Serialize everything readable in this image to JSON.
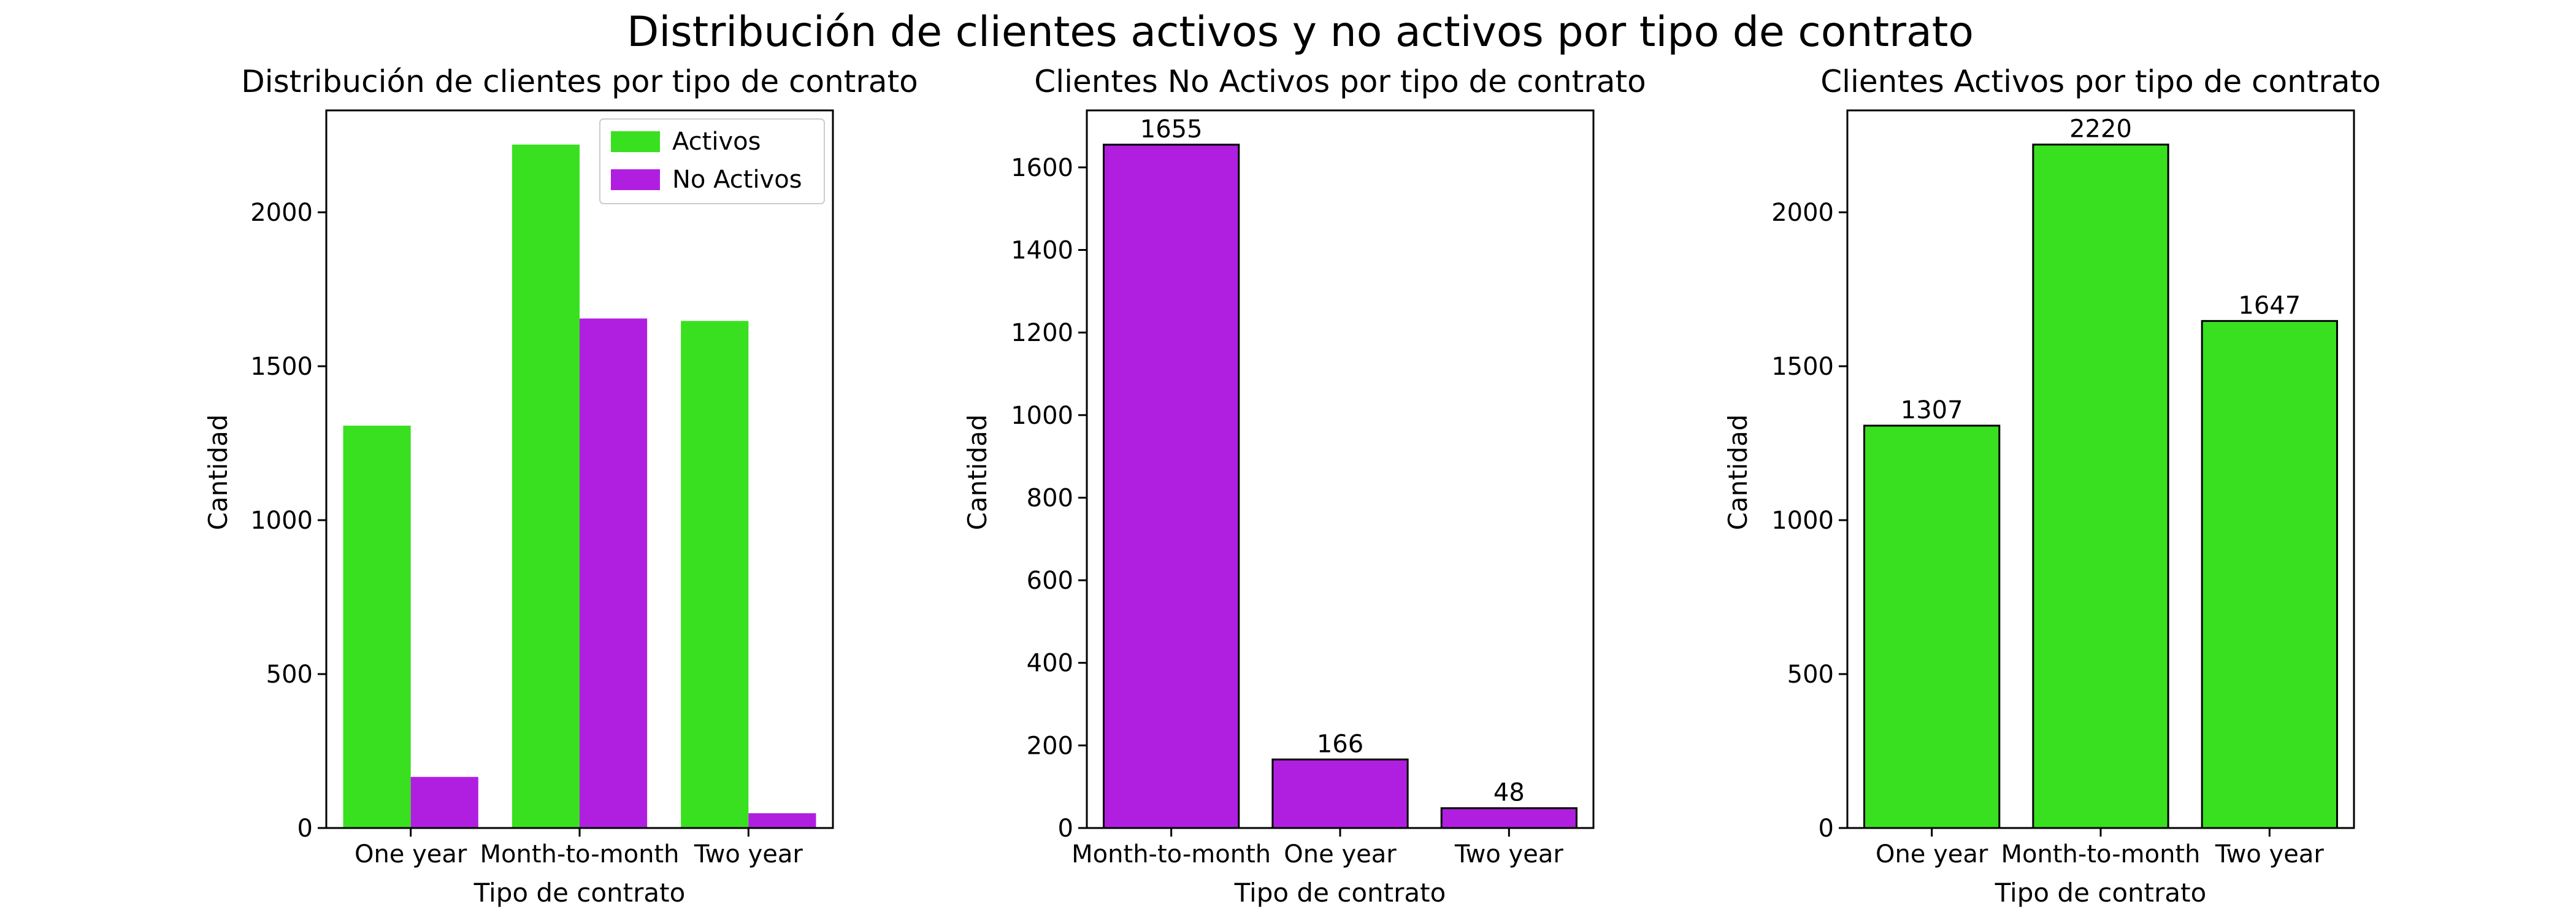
{
  "figure": {
    "suptitle": "Distribución de clientes activos y no activos por tipo de contrato"
  },
  "colors": {
    "activos": "#39e01f",
    "no_activos": "#b01fe0",
    "edge": "#000000"
  },
  "chart_data": [
    {
      "type": "bar",
      "title": "Distribución de clientes por tipo de contrato",
      "xlabel": "Tipo de contrato",
      "ylabel": "Cantidad",
      "categories": [
        "One year",
        "Month-to-month",
        "Two year"
      ],
      "series": [
        {
          "name": "Activos",
          "values": [
            1307,
            2220,
            1647
          ]
        },
        {
          "name": "No Activos",
          "values": [
            166,
            1655,
            48
          ]
        }
      ],
      "ylim": [
        0,
        2331
      ],
      "yticks": [
        0,
        500,
        1000,
        1500,
        2000
      ],
      "legend": "upper right",
      "grid": false
    },
    {
      "type": "bar",
      "title": "Clientes No Activos por tipo de contrato",
      "xlabel": "Tipo de contrato",
      "ylabel": "Cantidad",
      "categories": [
        "Month-to-month",
        "One year",
        "Two year"
      ],
      "values": [
        1655,
        166,
        48
      ],
      "data_labels": [
        "1655",
        "166",
        "48"
      ],
      "ylim": [
        0,
        1738
      ],
      "yticks": [
        0,
        200,
        400,
        600,
        800,
        1000,
        1200,
        1400,
        1600
      ],
      "grid": false
    },
    {
      "type": "bar",
      "title": "Clientes Activos por tipo de contrato",
      "xlabel": "Tipo de contrato",
      "ylabel": "Cantidad",
      "categories": [
        "One year",
        "Month-to-month",
        "Two year"
      ],
      "values": [
        1307,
        2220,
        1647
      ],
      "data_labels": [
        "1307",
        "2220",
        "1647"
      ],
      "ylim": [
        0,
        2331
      ],
      "yticks": [
        0,
        500,
        1000,
        1500,
        2000
      ],
      "grid": false
    }
  ]
}
